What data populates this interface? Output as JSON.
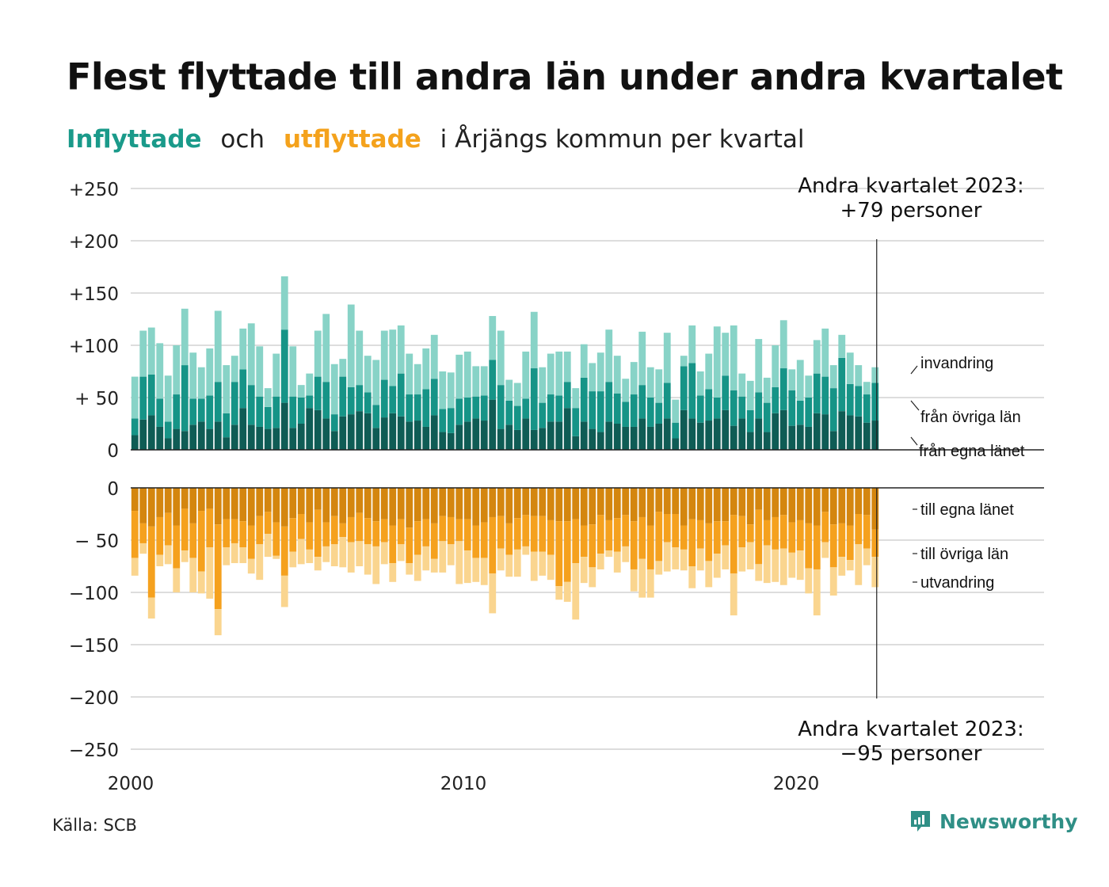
{
  "title": "Flest flyttade till andra län under andra kvartalet",
  "subtitle": {
    "inflow_word": "Inflyttade",
    "and_word": "och",
    "outflow_word": "utflyttade",
    "rest": "i Årjängs kommun per kvartal"
  },
  "colors": {
    "in_own": "#0f5c55",
    "in_other": "#169487",
    "in_immigration": "#88d3c7",
    "out_own": "#d4860f",
    "out_other": "#f5a11e",
    "out_emigration": "#fad58f",
    "subtitle_in": "#1a9a8a",
    "subtitle_out": "#f4a21c"
  },
  "annotations": {
    "top_line1": "Andra kvartalet 2023:",
    "top_line2": "+79 personer",
    "bottom_line1": "Andra kvartalet 2023:",
    "bottom_line2": "−95 personer"
  },
  "series_labels": {
    "in_immigration": "invandring",
    "in_other": "från övriga län",
    "in_own": "från egna länet",
    "out_own": "till egna länet",
    "out_other": "till övriga län",
    "out_emigration": "utvandring"
  },
  "source": "Källa: SCB",
  "brand": "Newsworthy",
  "chart_data": {
    "type": "bar",
    "stacked": true,
    "x_start": "2000 Q1",
    "x_end": "2023 Q2",
    "xticks": [
      "2000",
      "2010",
      "2020"
    ],
    "yticks_top": [
      "+250",
      "+200",
      "+150",
      "+100",
      "+ 50",
      "0"
    ],
    "yticks_bottom": [
      "0",
      "− 50",
      "−100",
      "−150",
      "−200",
      "−250"
    ],
    "ylim_top": [
      0,
      250
    ],
    "ylim_bottom": [
      -250,
      0
    ],
    "grid": true,
    "inflow": {
      "own": [
        14,
        29,
        33,
        22,
        11,
        20,
        18,
        24,
        27,
        20,
        27,
        12,
        24,
        40,
        24,
        22,
        20,
        21,
        45,
        21,
        25,
        40,
        38,
        30,
        18,
        32,
        34,
        37,
        35,
        21,
        31,
        35,
        32,
        27,
        28,
        22,
        33,
        17,
        16,
        24,
        27,
        30,
        28,
        48,
        20,
        24,
        19,
        30,
        19,
        21,
        27,
        27,
        40,
        13,
        27,
        20,
        17,
        27,
        25,
        22,
        22,
        30,
        22,
        25,
        30,
        11,
        38,
        30,
        26,
        28,
        30,
        38,
        23,
        30,
        17,
        30,
        17,
        35,
        38,
        23,
        24,
        22,
        35,
        34,
        18,
        37,
        33,
        32,
        26,
        28
      ],
      "other": [
        16,
        41,
        39,
        27,
        16,
        33,
        63,
        25,
        22,
        32,
        38,
        23,
        41,
        37,
        38,
        29,
        21,
        30,
        70,
        30,
        25,
        12,
        32,
        35,
        16,
        38,
        26,
        25,
        20,
        22,
        36,
        26,
        41,
        26,
        25,
        36,
        35,
        22,
        24,
        25,
        23,
        21,
        24,
        38,
        42,
        23,
        23,
        19,
        59,
        24,
        26,
        25,
        25,
        27,
        42,
        36,
        39,
        38,
        29,
        24,
        31,
        32,
        28,
        20,
        34,
        15,
        42,
        53,
        26,
        30,
        20,
        33,
        34,
        21,
        21,
        25,
        28,
        25,
        40,
        34,
        23,
        28,
        38,
        36,
        41,
        51,
        30,
        29,
        27,
        36
      ],
      "immigration": [
        40,
        44,
        45,
        53,
        44,
        47,
        54,
        44,
        30,
        45,
        68,
        46,
        25,
        39,
        59,
        48,
        18,
        41,
        51,
        48,
        12,
        21,
        44,
        65,
        48,
        17,
        79,
        52,
        35,
        43,
        47,
        54,
        46,
        39,
        29,
        39,
        42,
        36,
        34,
        42,
        44,
        29,
        28,
        42,
        52,
        20,
        22,
        45,
        54,
        34,
        39,
        42,
        29,
        19,
        32,
        27,
        37,
        50,
        36,
        22,
        31,
        51,
        29,
        32,
        48,
        22,
        10,
        36,
        23,
        34,
        68,
        41,
        62,
        22,
        28,
        51,
        24,
        40,
        46,
        20,
        39,
        21,
        32,
        46,
        22,
        22,
        30,
        20,
        12,
        15
      ]
    },
    "outflow": {
      "own": [
        -22,
        -34,
        -37,
        -28,
        -24,
        -36,
        -20,
        -34,
        -22,
        -20,
        -35,
        -30,
        -30,
        -32,
        -36,
        -27,
        -23,
        -33,
        -37,
        -29,
        -25,
        -33,
        -21,
        -33,
        -27,
        -34,
        -28,
        -24,
        -29,
        -32,
        -30,
        -36,
        -30,
        -38,
        -32,
        -30,
        -34,
        -27,
        -28,
        -30,
        -30,
        -36,
        -33,
        -28,
        -27,
        -34,
        -29,
        -26,
        -27,
        -27,
        -31,
        -32,
        -32,
        -30,
        -36,
        -35,
        -26,
        -31,
        -29,
        -26,
        -32,
        -28,
        -36,
        -23,
        -25,
        -25,
        -36,
        -30,
        -31,
        -34,
        -32,
        -32,
        -26,
        -27,
        -35,
        -21,
        -31,
        -28,
        -26,
        -33,
        -31,
        -34,
        -36,
        -23,
        -35,
        -34,
        -36,
        -25,
        -26,
        -40
      ],
      "other": [
        -45,
        -19,
        -68,
        -36,
        -31,
        -41,
        -40,
        -33,
        -58,
        -37,
        -81,
        -27,
        -23,
        -25,
        -32,
        -27,
        -21,
        -32,
        -47,
        -32,
        -24,
        -26,
        -45,
        -23,
        -27,
        -13,
        -24,
        -27,
        -25,
        -24,
        -22,
        -36,
        -24,
        -34,
        -32,
        -26,
        -34,
        -24,
        -26,
        -21,
        -30,
        -31,
        -34,
        -54,
        -31,
        -30,
        -30,
        -30,
        -34,
        -34,
        -33,
        -62,
        -58,
        -42,
        -30,
        -41,
        -37,
        -29,
        -32,
        -30,
        -46,
        -40,
        -42,
        -47,
        -27,
        -32,
        -23,
        -45,
        -27,
        -36,
        -31,
        -23,
        -56,
        -30,
        -17,
        -52,
        -24,
        -31,
        -32,
        -29,
        -29,
        -43,
        -42,
        -29,
        -41,
        -32,
        -33,
        -29,
        -32,
        -26
      ],
      "emigration": [
        -17,
        -10,
        -20,
        -11,
        -18,
        -23,
        -11,
        -33,
        -21,
        -49,
        -25,
        -17,
        -19,
        -15,
        -14,
        -34,
        -22,
        -3,
        -30,
        -15,
        -24,
        -13,
        -13,
        -15,
        -21,
        -29,
        -29,
        -24,
        -29,
        -36,
        -21,
        -18,
        -16,
        -11,
        -25,
        -23,
        -13,
        -30,
        -20,
        -41,
        -31,
        -23,
        -26,
        -38,
        -21,
        -21,
        -26,
        -8,
        -28,
        -23,
        -24,
        -13,
        -19,
        -54,
        -25,
        -19,
        -15,
        -6,
        -20,
        -15,
        -21,
        -37,
        -27,
        -13,
        -28,
        -21,
        -20,
        -21,
        -21,
        -25,
        -23,
        -23,
        -40,
        -23,
        -26,
        -16,
        -36,
        -31,
        -35,
        -24,
        -28,
        -24,
        -44,
        -15,
        -27,
        -18,
        -10,
        -39,
        -16,
        -29
      ]
    }
  }
}
